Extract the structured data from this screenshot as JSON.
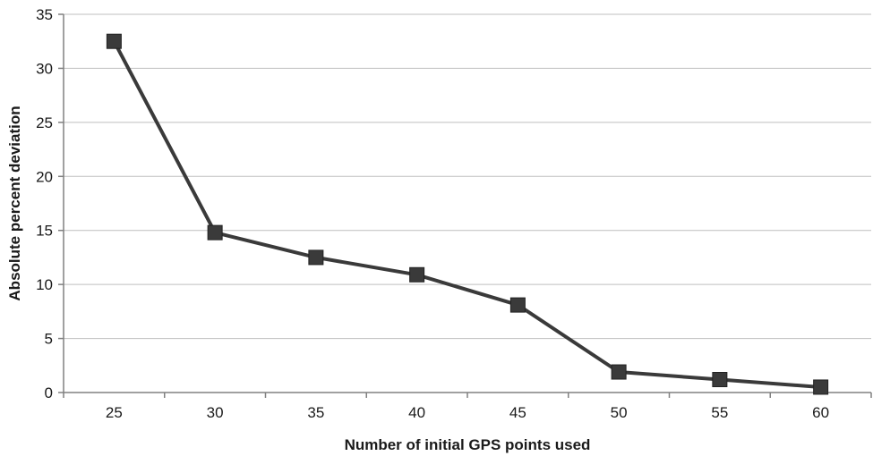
{
  "chart_data": {
    "type": "line",
    "title": "",
    "xlabel": "Number of initial GPS points used",
    "ylabel": "Absolute percent deviation",
    "categories": [
      "25",
      "30",
      "35",
      "40",
      "45",
      "50",
      "55",
      "60"
    ],
    "series": [
      {
        "values": [
          32.5,
          14.8,
          12.5,
          10.9,
          8.1,
          1.9,
          1.2,
          0.5
        ]
      }
    ],
    "ylim": [
      0,
      35
    ],
    "yticks": [
      0,
      5,
      10,
      15,
      20,
      25,
      30,
      35
    ],
    "grid": "horizontal",
    "legend": "none",
    "marker": "square",
    "colors": {
      "line": "#3a3a3a",
      "marker": "#3a3a3a",
      "grid": "#bfbfbf",
      "axis": "#808080"
    }
  }
}
